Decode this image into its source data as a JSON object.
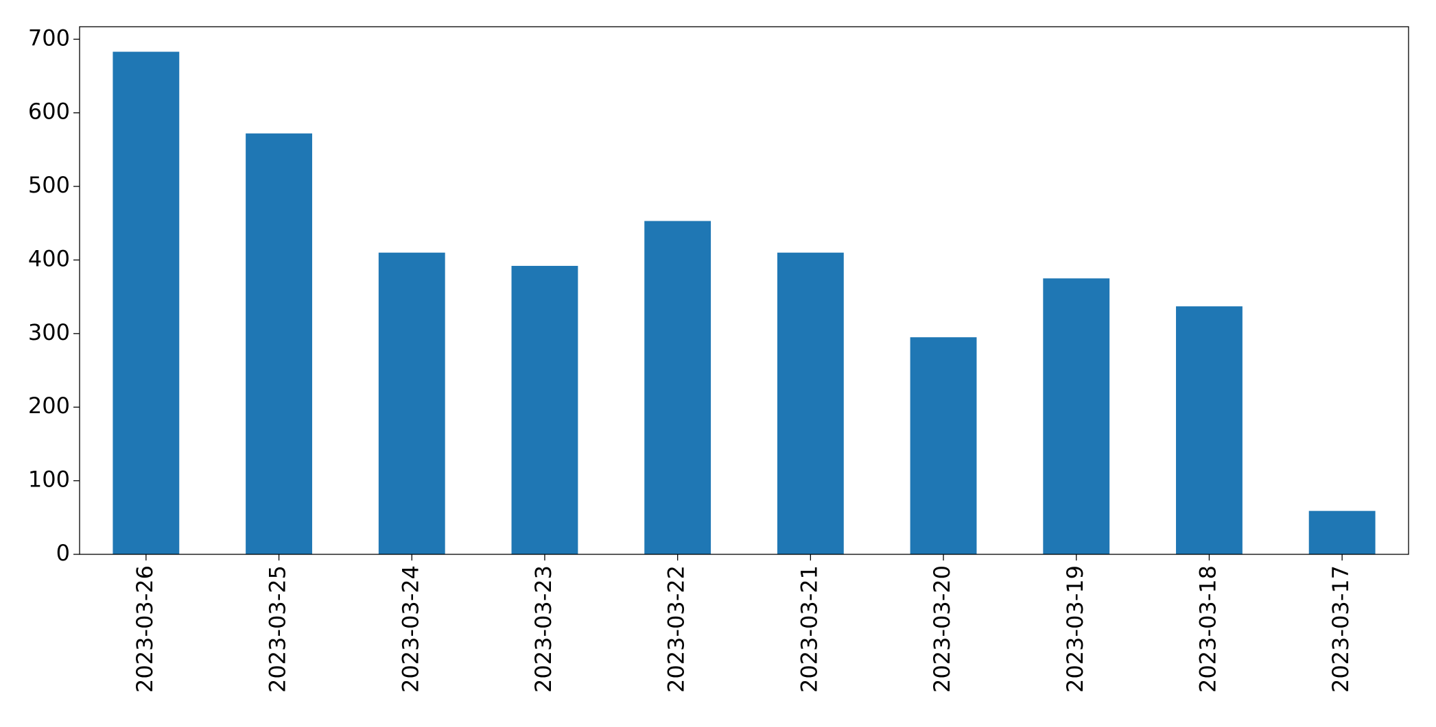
{
  "chart_data": {
    "type": "bar",
    "categories": [
      "2023-03-26",
      "2023-03-25",
      "2023-03-24",
      "2023-03-23",
      "2023-03-22",
      "2023-03-21",
      "2023-03-20",
      "2023-03-19",
      "2023-03-18",
      "2023-03-17"
    ],
    "values": [
      683,
      572,
      410,
      392,
      453,
      410,
      295,
      375,
      337,
      59
    ],
    "color": "#1f77b4",
    "ylim": [
      0,
      717
    ],
    "yticks": [
      0,
      100,
      200,
      300,
      400,
      500,
      600,
      700
    ],
    "grid": false
  }
}
